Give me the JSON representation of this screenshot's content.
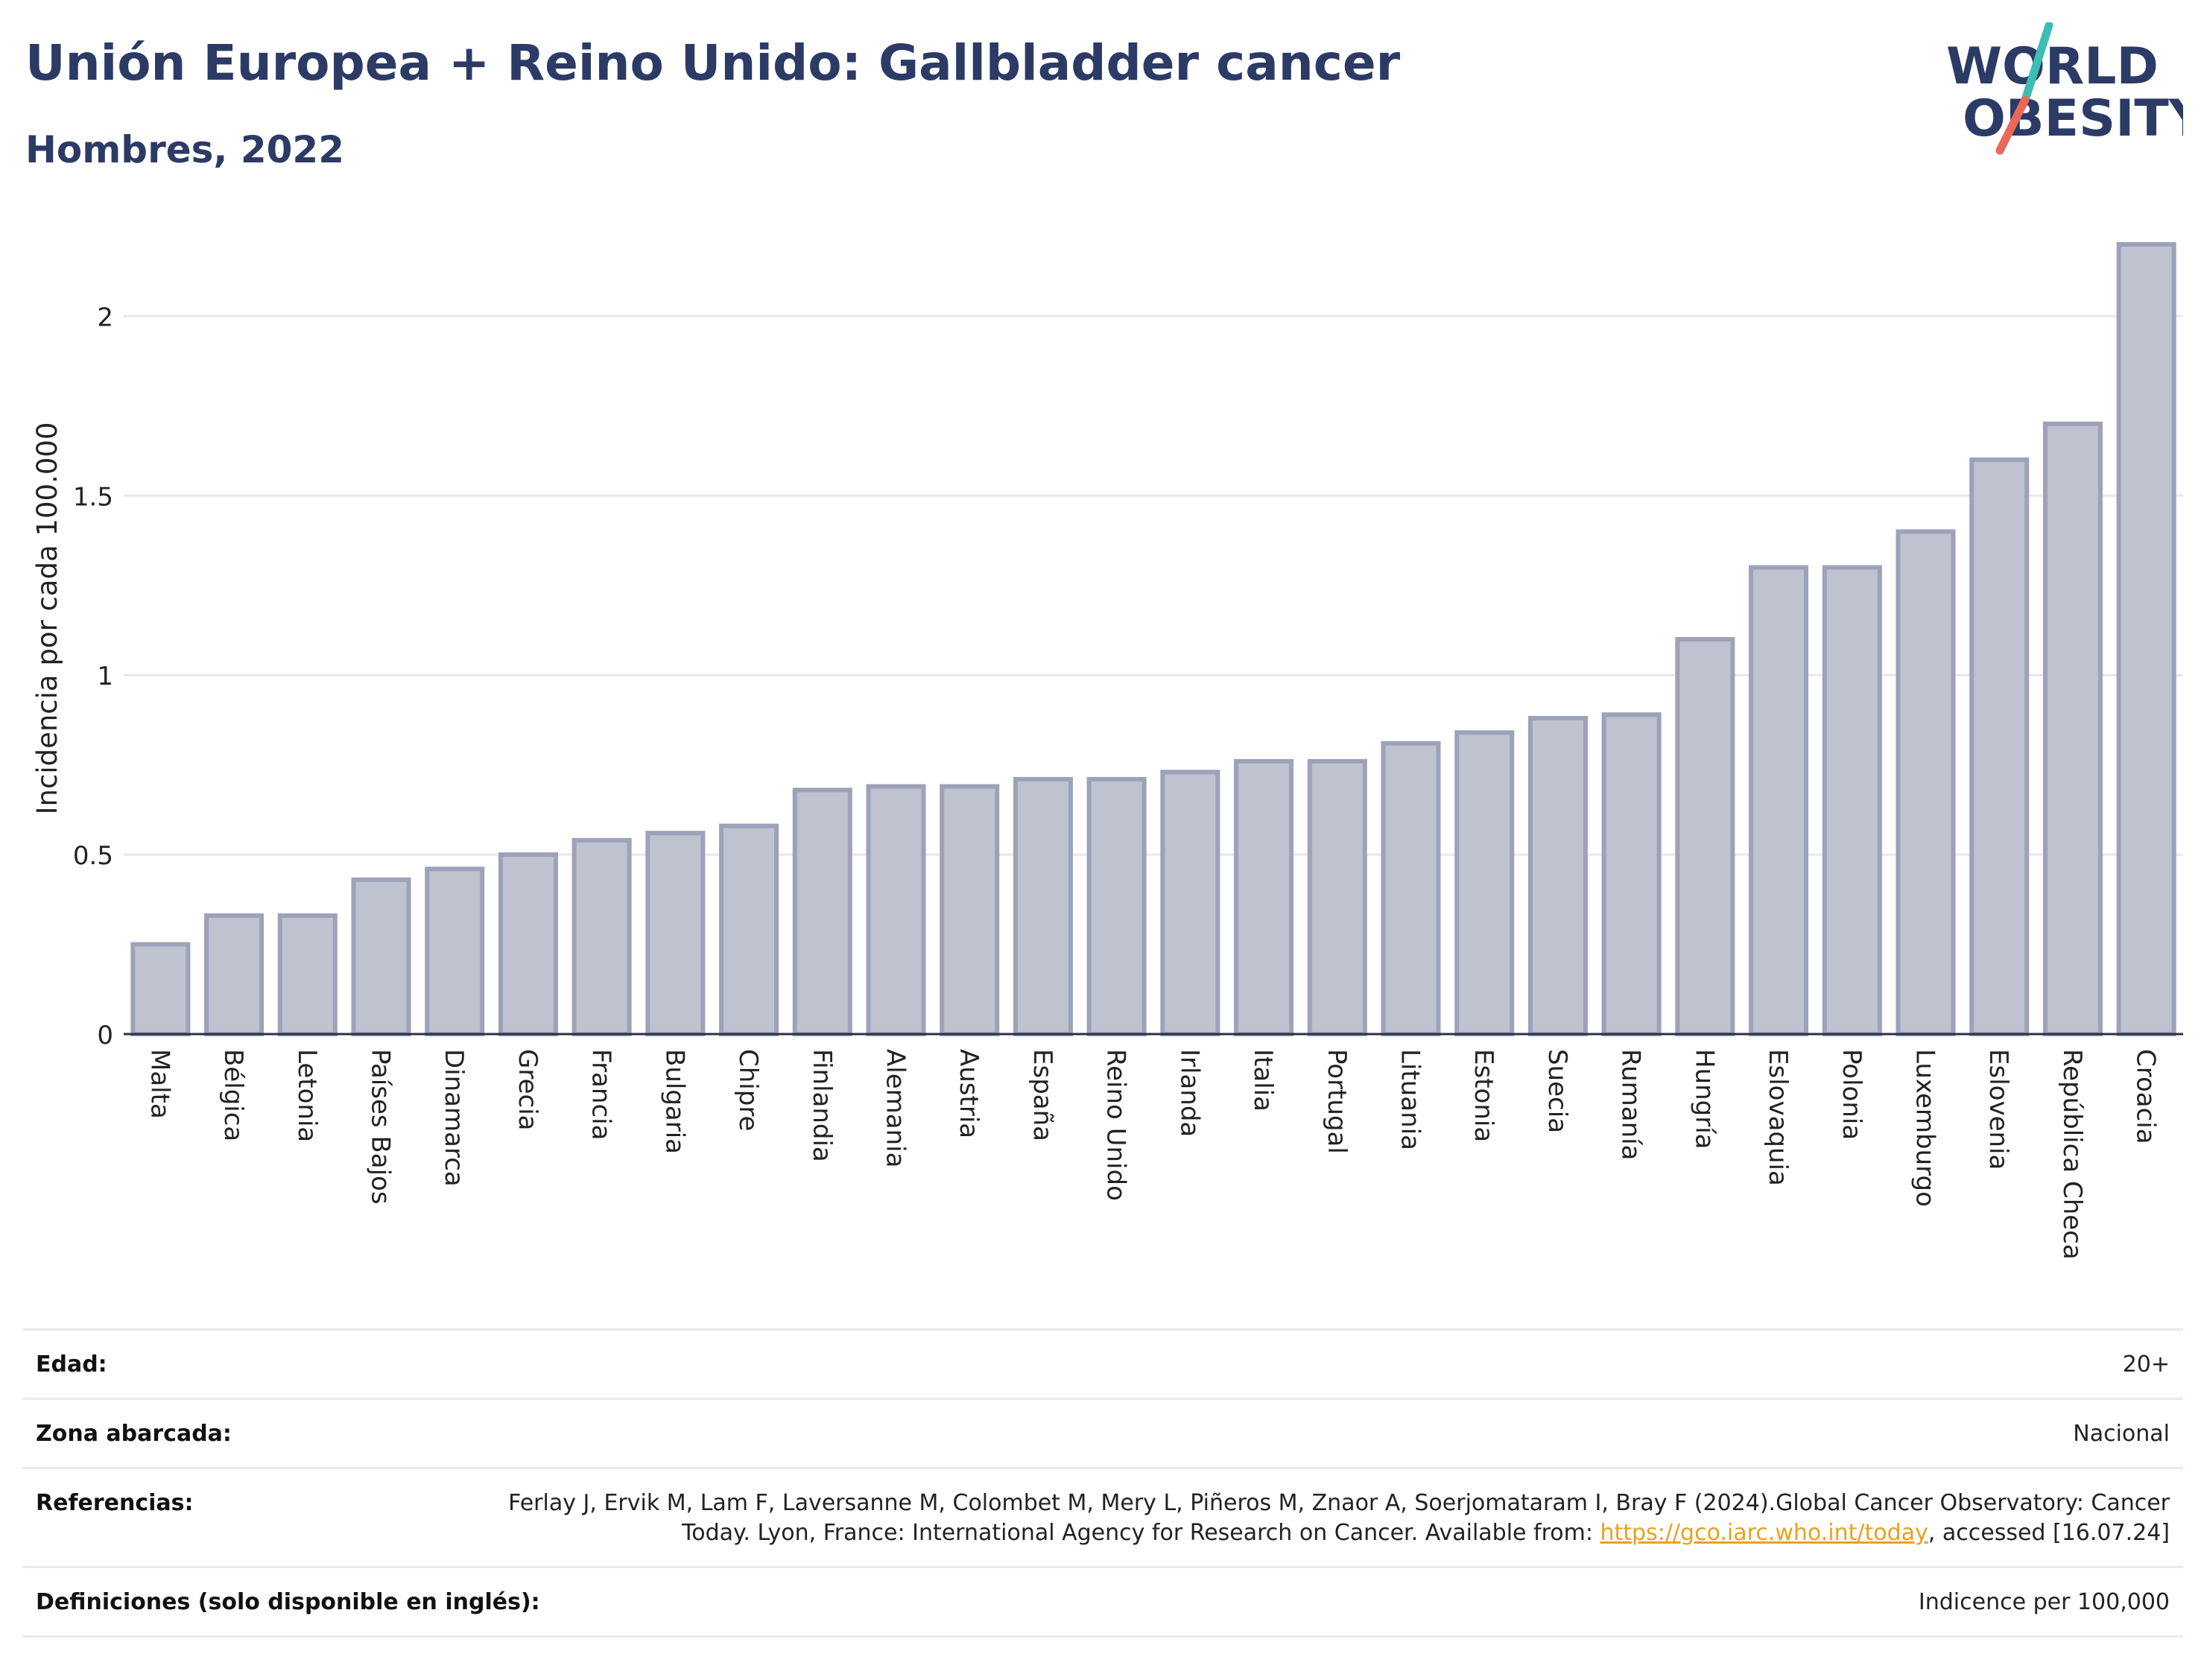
{
  "header": {
    "title": "Unión Europea + Reino Unido: Gallbladder cancer",
    "subtitle": "Hombres, 2022"
  },
  "logo": {
    "line1": "WORLD",
    "line2": "OBESITY",
    "slash_colors": [
      "#3dbdb4",
      "#e8685a"
    ],
    "text_color": "#2c3a66"
  },
  "chart_data": {
    "type": "bar",
    "title": "Unión Europea + Reino Unido: Gallbladder cancer",
    "subtitle": "Hombres, 2022",
    "xlabel": "",
    "ylabel": "Incidencia por cada 100.000",
    "ylim": [
      0,
      2.2
    ],
    "yticks": [
      0,
      0.5,
      1,
      1.5,
      2
    ],
    "ytick_labels": [
      "0",
      "0.5",
      "1",
      "1.5",
      "2"
    ],
    "grid": true,
    "bar_color": "#bfc2cf",
    "bar_border_color": "#9ca2b9",
    "categories": [
      "Malta",
      "Bélgica",
      "Letonia",
      "Países Bajos",
      "Dinamarca",
      "Grecia",
      "Francia",
      "Bulgaria",
      "Chipre",
      "Finlandia",
      "Alemania",
      "Austria",
      "España",
      "Reino Unido",
      "Irlanda",
      "Italia",
      "Portugal",
      "Lituania",
      "Estonia",
      "Suecia",
      "Rumanía",
      "Hungría",
      "Eslovaquia",
      "Polonia",
      "Luxemburgo",
      "Eslovenia",
      "República Checa",
      "Croacia"
    ],
    "values": [
      0.25,
      0.33,
      0.33,
      0.43,
      0.46,
      0.5,
      0.54,
      0.56,
      0.58,
      0.68,
      0.69,
      0.69,
      0.71,
      0.71,
      0.73,
      0.76,
      0.76,
      0.81,
      0.84,
      0.88,
      0.89,
      1.1,
      1.3,
      1.3,
      1.4,
      1.6,
      1.7,
      2.2
    ]
  },
  "info": {
    "age_label": "Edad:",
    "age_value": "20+",
    "area_label": "Zona abarcada:",
    "area_value": "Nacional",
    "refs_label": "Referencias:",
    "refs_text_1": "Ferlay J, Ervik M, Lam F, Laversanne M, Colombet M, Mery L, Piñeros M, Znaor A, Soerjomataram I, Bray F (2024).Global Cancer Observatory: Cancer Today. Lyon, France: International Agency for Research on Cancer. Available from: ",
    "refs_link": "https://gco.iarc.who.int/today",
    "refs_text_2": ", accessed [16.07.24]",
    "defs_label": "Definiciones (solo disponible en inglés):",
    "defs_value": "Indicence per 100,000"
  }
}
